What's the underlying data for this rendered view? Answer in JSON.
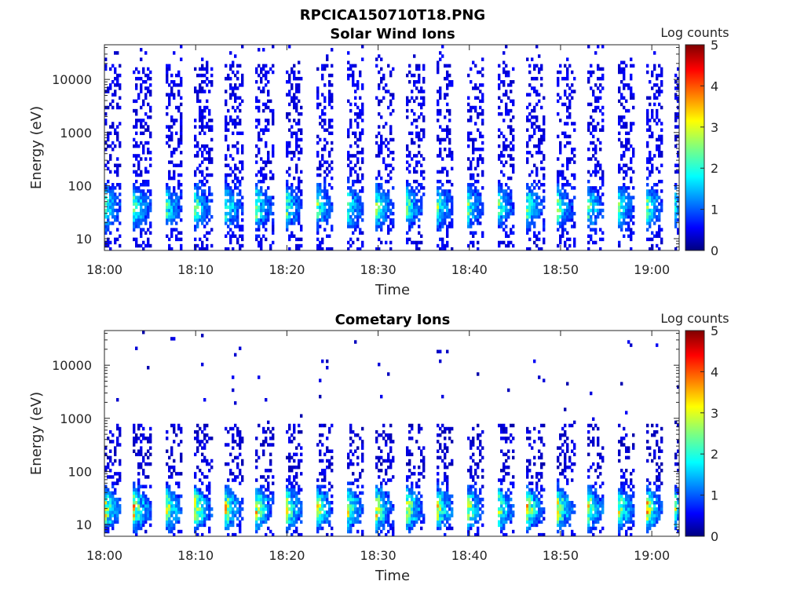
{
  "figure_title": "RPCICA150710T18.PNG",
  "chart_data": [
    {
      "type": "heatmap",
      "title": "Solar Wind Ions",
      "xlabel": "Time",
      "ylabel": "Energy (eV)",
      "x_ticks": [
        "18:00",
        "18:10",
        "18:20",
        "18:30",
        "18:40",
        "18:50",
        "19:00"
      ],
      "x_tick_minutes": [
        0,
        10,
        20,
        30,
        40,
        50,
        60
      ],
      "xlim_minutes": [
        0,
        63
      ],
      "y_scale": "log",
      "ylim": [
        6,
        45000
      ],
      "y_ticks": [
        10,
        100,
        1000,
        10000
      ],
      "y_tick_labels": [
        "10",
        "100",
        "1000",
        "10000"
      ],
      "colorbar": {
        "label": "Log counts",
        "range": [
          0,
          5
        ],
        "ticks": [
          "0",
          "1",
          "2",
          "3",
          "4",
          "5"
        ],
        "colormap": "jet"
      },
      "sweep_start_minutes": [
        0,
        3.2,
        6.7,
        9.9,
        13.2,
        16.6,
        19.9,
        23.2,
        26.5,
        29.8,
        33.1,
        36.4,
        39.7,
        43.0,
        46.3,
        49.6,
        52.9,
        56.2,
        59.5,
        62.5
      ],
      "peak_energy_eV": 40,
      "peak_log_counts": 2.5,
      "background_log_counts": 0.3
    },
    {
      "type": "heatmap",
      "title": "Cometary Ions",
      "xlabel": "Time",
      "ylabel": "Energy (eV)",
      "x_ticks": [
        "18:00",
        "18:10",
        "18:20",
        "18:30",
        "18:40",
        "18:50",
        "19:00"
      ],
      "x_tick_minutes": [
        0,
        10,
        20,
        30,
        40,
        50,
        60
      ],
      "xlim_minutes": [
        0,
        63
      ],
      "y_scale": "log",
      "ylim": [
        6,
        45000
      ],
      "y_ticks": [
        10,
        100,
        1000,
        10000
      ],
      "y_tick_labels": [
        "10",
        "100",
        "1000",
        "10000"
      ],
      "colorbar": {
        "label": "Log counts",
        "range": [
          0,
          5
        ],
        "ticks": [
          "0",
          "1",
          "2",
          "3",
          "4",
          "5"
        ],
        "colormap": "jet"
      },
      "sweep_start_minutes": [
        0,
        3.2,
        6.7,
        9.9,
        13.2,
        16.6,
        19.9,
        23.2,
        26.5,
        29.8,
        33.1,
        36.4,
        39.7,
        43.0,
        46.3,
        49.6,
        52.9,
        56.2,
        59.5,
        62.5
      ],
      "peak_energy_eV": 20,
      "peak_log_counts": 3.5,
      "background_log_counts": 0.2
    }
  ]
}
